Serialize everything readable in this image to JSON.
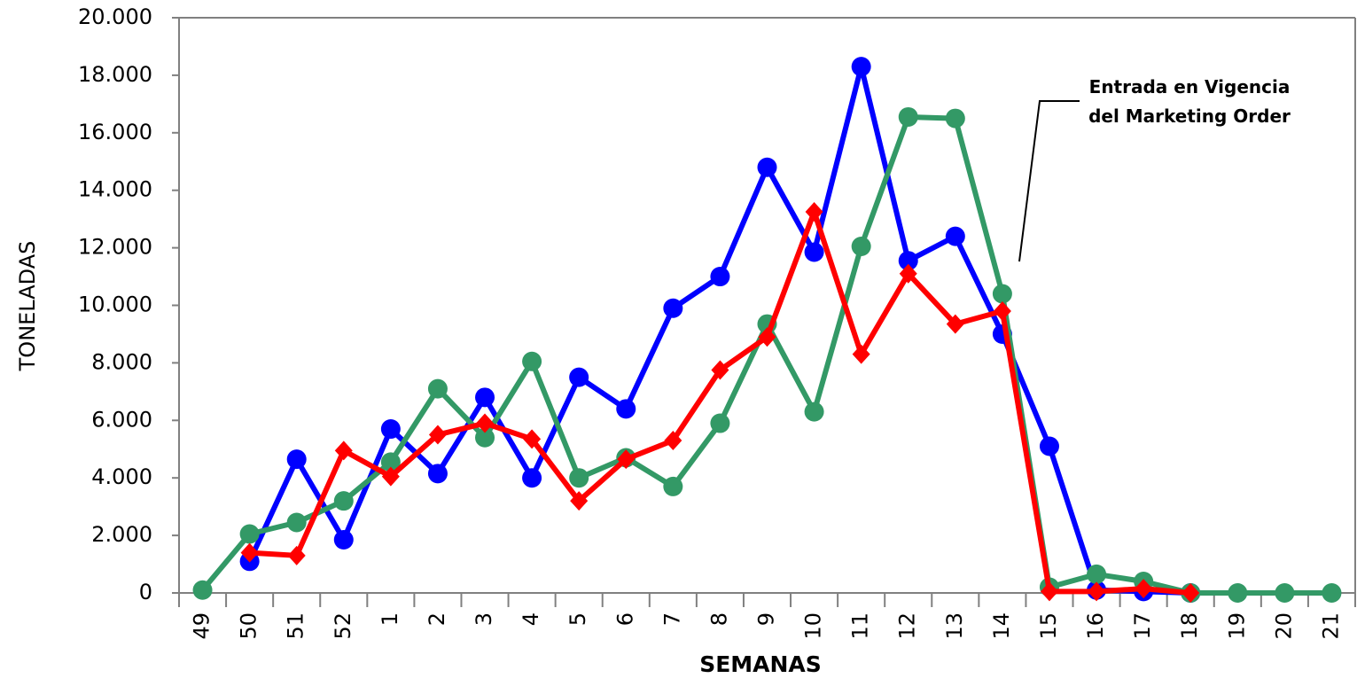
{
  "chart_data": {
    "type": "line",
    "x_label": "SEMANAS",
    "y_label": "TONELADAS",
    "annotation": [
      "Entrada en Vigencia",
      "del Marketing Order"
    ],
    "categories": [
      "49",
      "50",
      "51",
      "52",
      "1",
      "2",
      "3",
      "4",
      "5",
      "6",
      "7",
      "8",
      "9",
      "10",
      "11",
      "12",
      "13",
      "14",
      "15",
      "16",
      "17",
      "18",
      "19",
      "20",
      "21"
    ],
    "series": [
      {
        "color": "#0000ff",
        "marker": "circle",
        "values": [
          null,
          1100,
          4650,
          1850,
          5700,
          4150,
          6800,
          4000,
          7500,
          6400,
          9900,
          11000,
          14800,
          11850,
          18300,
          11550,
          12400,
          9000,
          5100,
          100,
          50,
          0,
          null,
          null,
          null
        ]
      },
      {
        "color": "#339966",
        "marker": "circle",
        "values": [
          100,
          2050,
          2450,
          3200,
          4550,
          7100,
          5400,
          8050,
          4000,
          4700,
          3700,
          5900,
          9350,
          6300,
          12050,
          16550,
          16500,
          10400,
          200,
          650,
          400,
          0,
          0,
          0,
          0
        ]
      },
      {
        "color": "#ff0000",
        "marker": "diamond",
        "values": [
          null,
          1400,
          1300,
          4950,
          4050,
          5500,
          5900,
          5350,
          3200,
          4650,
          5300,
          7750,
          8900,
          13250,
          8300,
          11100,
          9350,
          9800,
          50,
          50,
          150,
          0,
          null,
          null,
          null
        ]
      }
    ],
    "ylim": [
      0,
      20000
    ],
    "yticks": [
      0,
      {
        "value": 2000,
        "label": "2.000"
      },
      {
        "value": 4000,
        "label": "4.000"
      },
      {
        "value": 6000,
        "label": "6.000"
      },
      {
        "value": 8000,
        "label": "8.000"
      },
      {
        "value": 10000,
        "label": "10.000"
      },
      {
        "value": 12000,
        "label": "12.000"
      },
      {
        "value": 14000,
        "label": "14.000"
      },
      {
        "value": 16000,
        "label": "16.000"
      },
      {
        "value": 18000,
        "label": "18.000"
      },
      {
        "value": 20000,
        "label": "20.000"
      }
    ],
    "grid": false
  }
}
